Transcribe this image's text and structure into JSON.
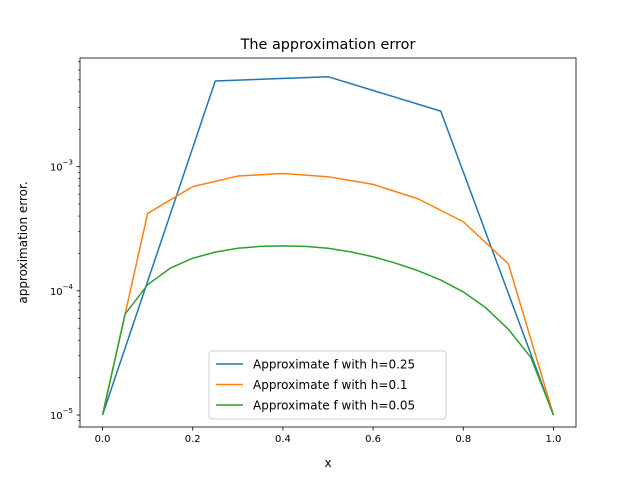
{
  "chart_data": {
    "type": "line",
    "title": "The approximation error",
    "xlabel": "x",
    "ylabel": "approximation error.",
    "xscale": "linear",
    "yscale": "log",
    "xlim": [
      -0.05,
      1.05
    ],
    "ylim": [
      8e-06,
      0.0075
    ],
    "x_ticks": [
      0.0,
      0.2,
      0.4,
      0.6,
      0.8,
      1.0
    ],
    "x_tick_labels": [
      "0.0",
      "0.2",
      "0.4",
      "0.6",
      "0.8",
      "1.0"
    ],
    "y_ticks": [
      1e-05,
      0.0001,
      0.001
    ],
    "y_tick_labels": [
      {
        "base": "10",
        "exp": "−5"
      },
      {
        "base": "10",
        "exp": "−4"
      },
      {
        "base": "10",
        "exp": "−3"
      }
    ],
    "grid": false,
    "legend_position": "lower center",
    "series": [
      {
        "name": "Approximate f with h=0.25",
        "color": "#1f77b4",
        "x": [
          0.0,
          0.25,
          0.5,
          0.75,
          1.0
        ],
        "y": [
          1e-05,
          0.0049,
          0.0053,
          0.0028,
          1e-05
        ]
      },
      {
        "name": "Approximate f with h=0.1",
        "color": "#ff7f0e",
        "x": [
          0.0,
          0.1,
          0.2,
          0.3,
          0.4,
          0.5,
          0.6,
          0.7,
          0.8,
          0.9,
          1.0
        ],
        "y": [
          1e-05,
          0.00042,
          0.00069,
          0.00084,
          0.00088,
          0.00083,
          0.00072,
          0.00055,
          0.00036,
          0.000165,
          1e-05
        ]
      },
      {
        "name": "Approximate f with h=0.05",
        "color": "#2ca02c",
        "x": [
          0.0,
          0.05,
          0.1,
          0.15,
          0.2,
          0.25,
          0.3,
          0.35,
          0.4,
          0.45,
          0.5,
          0.55,
          0.6,
          0.65,
          0.7,
          0.75,
          0.8,
          0.85,
          0.9,
          0.95,
          1.0
        ],
        "y": [
          1e-05,
          6.5e-05,
          0.000112,
          0.000152,
          0.000183,
          0.000205,
          0.00022,
          0.000228,
          0.00023,
          0.000228,
          0.00022,
          0.000206,
          0.000188,
          0.000167,
          0.000145,
          0.000122,
          9.8e-05,
          7.3e-05,
          4.9e-05,
          2.9e-05,
          1e-05
        ]
      }
    ]
  }
}
